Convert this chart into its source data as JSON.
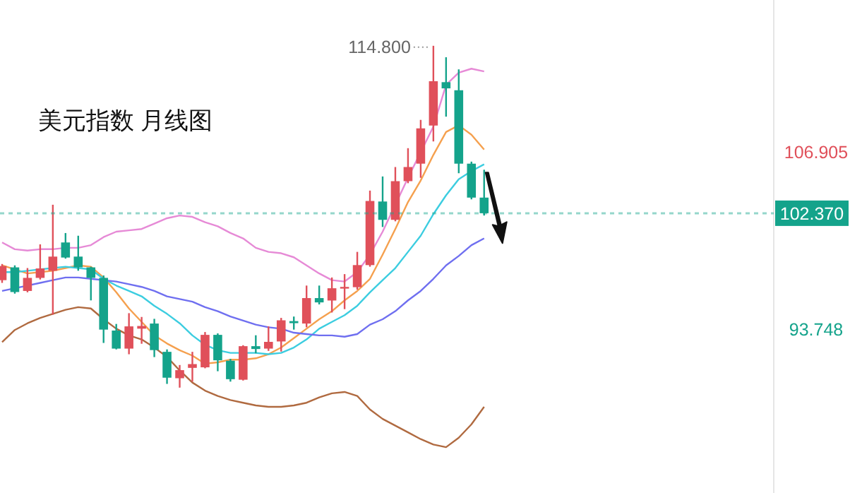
{
  "chart_data": {
    "type": "candlestick",
    "title": "美元指数  月线图",
    "categories": [
      null,
      null,
      null,
      null,
      null,
      null,
      null,
      null,
      null,
      null,
      null,
      null,
      null,
      null,
      null,
      null,
      null,
      null,
      null,
      null,
      null,
      null,
      null,
      null,
      null,
      null,
      null,
      null,
      null,
      null,
      null,
      null,
      null,
      null,
      null,
      null,
      null,
      null,
      null
    ],
    "ohlc": [
      [
        97.4,
        98.6,
        97.2,
        98.45
      ],
      [
        98.35,
        98.5,
        96.4,
        96.52
      ],
      [
        96.6,
        98.3,
        96.5,
        97.57
      ],
      [
        97.57,
        100.06,
        97.45,
        98.27
      ],
      [
        98.1,
        103.0,
        94.84,
        99.15
      ],
      [
        100.2,
        100.9,
        99.0,
        99.08
      ],
      [
        99.15,
        100.7,
        98.1,
        98.35
      ],
      [
        98.35,
        98.4,
        95.9,
        97.57
      ],
      [
        97.57,
        97.75,
        92.74,
        93.73
      ],
      [
        93.66,
        94.15,
        92.26,
        92.32
      ],
      [
        92.32,
        94.95,
        91.9,
        93.97
      ],
      [
        93.8,
        94.67,
        92.68,
        94.0
      ],
      [
        94.18,
        94.53,
        91.69,
        92.21
      ],
      [
        92.08,
        92.26,
        89.7,
        90.16
      ],
      [
        90.12,
        91.1,
        89.42,
        90.72
      ],
      [
        90.89,
        92.08,
        89.87,
        91.17
      ],
      [
        90.93,
        93.55,
        90.86,
        93.34
      ],
      [
        93.34,
        93.45,
        90.64,
        91.45
      ],
      [
        91.42,
        91.56,
        89.87,
        90.05
      ],
      [
        90.01,
        92.57,
        89.95,
        92.5
      ],
      [
        92.5,
        93.31,
        91.97,
        92.29
      ],
      [
        92.32,
        93.97,
        92.15,
        92.82
      ],
      [
        92.85,
        94.6,
        92.1,
        94.42
      ],
      [
        94.36,
        94.7,
        93.73,
        94.21
      ],
      [
        94.18,
        97.0,
        93.9,
        96.07
      ],
      [
        96.07,
        97.0,
        95.6,
        95.75
      ],
      [
        95.89,
        97.6,
        95.0,
        96.8
      ],
      [
        96.8,
        97.85,
        95.25,
        96.9
      ],
      [
        96.88,
        99.5,
        96.7,
        98.52
      ],
      [
        98.52,
        104.05,
        98.4,
        103.28
      ],
      [
        103.24,
        105.1,
        101.35,
        101.88
      ],
      [
        101.88,
        105.8,
        101.77,
        104.75
      ],
      [
        104.75,
        107.2,
        104.6,
        105.8
      ],
      [
        106.05,
        109.3,
        105.0,
        108.67
      ],
      [
        108.88,
        114.8,
        107.7,
        112.17
      ],
      [
        112.1,
        113.95,
        109.54,
        111.64
      ],
      [
        111.5,
        113.05,
        105.34,
        106.05
      ],
      [
        106.05,
        106.2,
        103.4,
        103.53
      ],
      [
        103.53,
        105.6,
        102.2,
        102.37
      ]
    ],
    "colors": [
      "#e0505a",
      "#14a38b",
      "#e0505a",
      "#e0505a",
      "#e0505a",
      "#14a38b",
      "#14a38b",
      "#14a38b",
      "#14a38b",
      "#14a38b",
      "#e0505a",
      "#e0505a",
      "#14a38b",
      "#14a38b",
      "#e0505a",
      "#e0505a",
      "#e0505a",
      "#14a38b",
      "#14a38b",
      "#e0505a",
      "#14a38b",
      "#e0505a",
      "#e0505a",
      "#14a38b",
      "#e0505a",
      "#14a38b",
      "#e0505a",
      "#e0505a",
      "#e0505a",
      "#e0505a",
      "#14a38b",
      "#e0505a",
      "#e0505a",
      "#e0505a",
      "#e0505a",
      "#14a38b",
      "#14a38b",
      "#14a38b",
      "#14a38b"
    ],
    "series": [
      {
        "type": "line",
        "color": "#f5a04e",
        "values": [
          98.5,
          98.2,
          97.9,
          98.0,
          98.1,
          98.3,
          98.5,
          98.4,
          97.6,
          96.5,
          95.3,
          94.3,
          93.3,
          92.7,
          92.2,
          91.8,
          91.2,
          91.3,
          91.5,
          91.5,
          91.6,
          91.9,
          92.4,
          93.1,
          93.8,
          94.5,
          95.1,
          95.9,
          96.6,
          97.5,
          99.3,
          101.2,
          103.2,
          104.8,
          106.7,
          108.4,
          108.9,
          108.2,
          107.1
        ]
      },
      {
        "type": "line",
        "color": "#3ccde0",
        "values": [
          98.0,
          98.0,
          98.1,
          98.2,
          98.3,
          98.4,
          98.3,
          98.2,
          97.5,
          97.0,
          96.6,
          96.2,
          95.5,
          94.9,
          94.2,
          93.3,
          92.6,
          92.2,
          92.0,
          92.0,
          92.0,
          91.9,
          92.0,
          92.4,
          93.0,
          93.8,
          94.3,
          94.8,
          95.5,
          96.5,
          97.4,
          98.3,
          99.5,
          100.7,
          102.3,
          103.7,
          104.9,
          105.5,
          106.0
        ]
      },
      {
        "type": "line",
        "color": "#6f6ff0",
        "values": [
          96.6,
          96.8,
          97.0,
          97.2,
          97.4,
          97.6,
          97.6,
          97.5,
          97.4,
          97.3,
          97.1,
          96.9,
          96.6,
          96.2,
          96.0,
          95.8,
          95.4,
          95.1,
          94.7,
          94.4,
          94.1,
          93.9,
          93.8,
          93.5,
          93.4,
          93.3,
          93.3,
          93.2,
          93.4,
          94.1,
          94.5,
          95.1,
          95.9,
          96.6,
          97.5,
          98.5,
          99.2,
          100.0,
          100.5
        ]
      },
      {
        "type": "line",
        "color": "#e68ad6",
        "values": [
          100.2,
          99.7,
          99.6,
          99.7,
          99.7,
          99.8,
          99.8,
          100.0,
          100.6,
          101.0,
          101.1,
          101.2,
          101.6,
          102.0,
          102.2,
          102.1,
          101.7,
          101.4,
          100.9,
          100.5,
          99.8,
          99.5,
          99.4,
          99.1,
          98.5,
          97.9,
          97.4,
          97.3,
          98.0,
          99.3,
          101.0,
          null,
          105.0,
          null,
          108.8,
          111.9,
          112.8,
          113.1,
          112.9
        ]
      },
      {
        "type": "line",
        "color": "#b06a40",
        "values": [
          92.8,
          93.7,
          94.2,
          94.6,
          94.9,
          95.2,
          95.4,
          95.3,
          94.5,
          93.8,
          93.3,
          93.0,
          92.4,
          91.7,
          90.7,
          89.8,
          89.2,
          88.8,
          88.5,
          88.3,
          88.1,
          88.0,
          88.0,
          88.1,
          88.3,
          88.7,
          89.0,
          89.1,
          88.8,
          87.8,
          87.1,
          86.6,
          86.1,
          85.6,
          85.2,
          85.0,
          85.7,
          86.7,
          88.0
        ]
      }
    ],
    "ylim": [
      81.6,
      118.2
    ],
    "yticks": [
      93.748,
      106.905
    ],
    "ref_lines": [
      {
        "axis": "y",
        "value": 102.37,
        "label": "102.370",
        "color": "#14a38b",
        "line_style": "dotted"
      }
    ],
    "annotations": [
      "114.800"
    ],
    "grid": false,
    "marker": "none"
  }
}
